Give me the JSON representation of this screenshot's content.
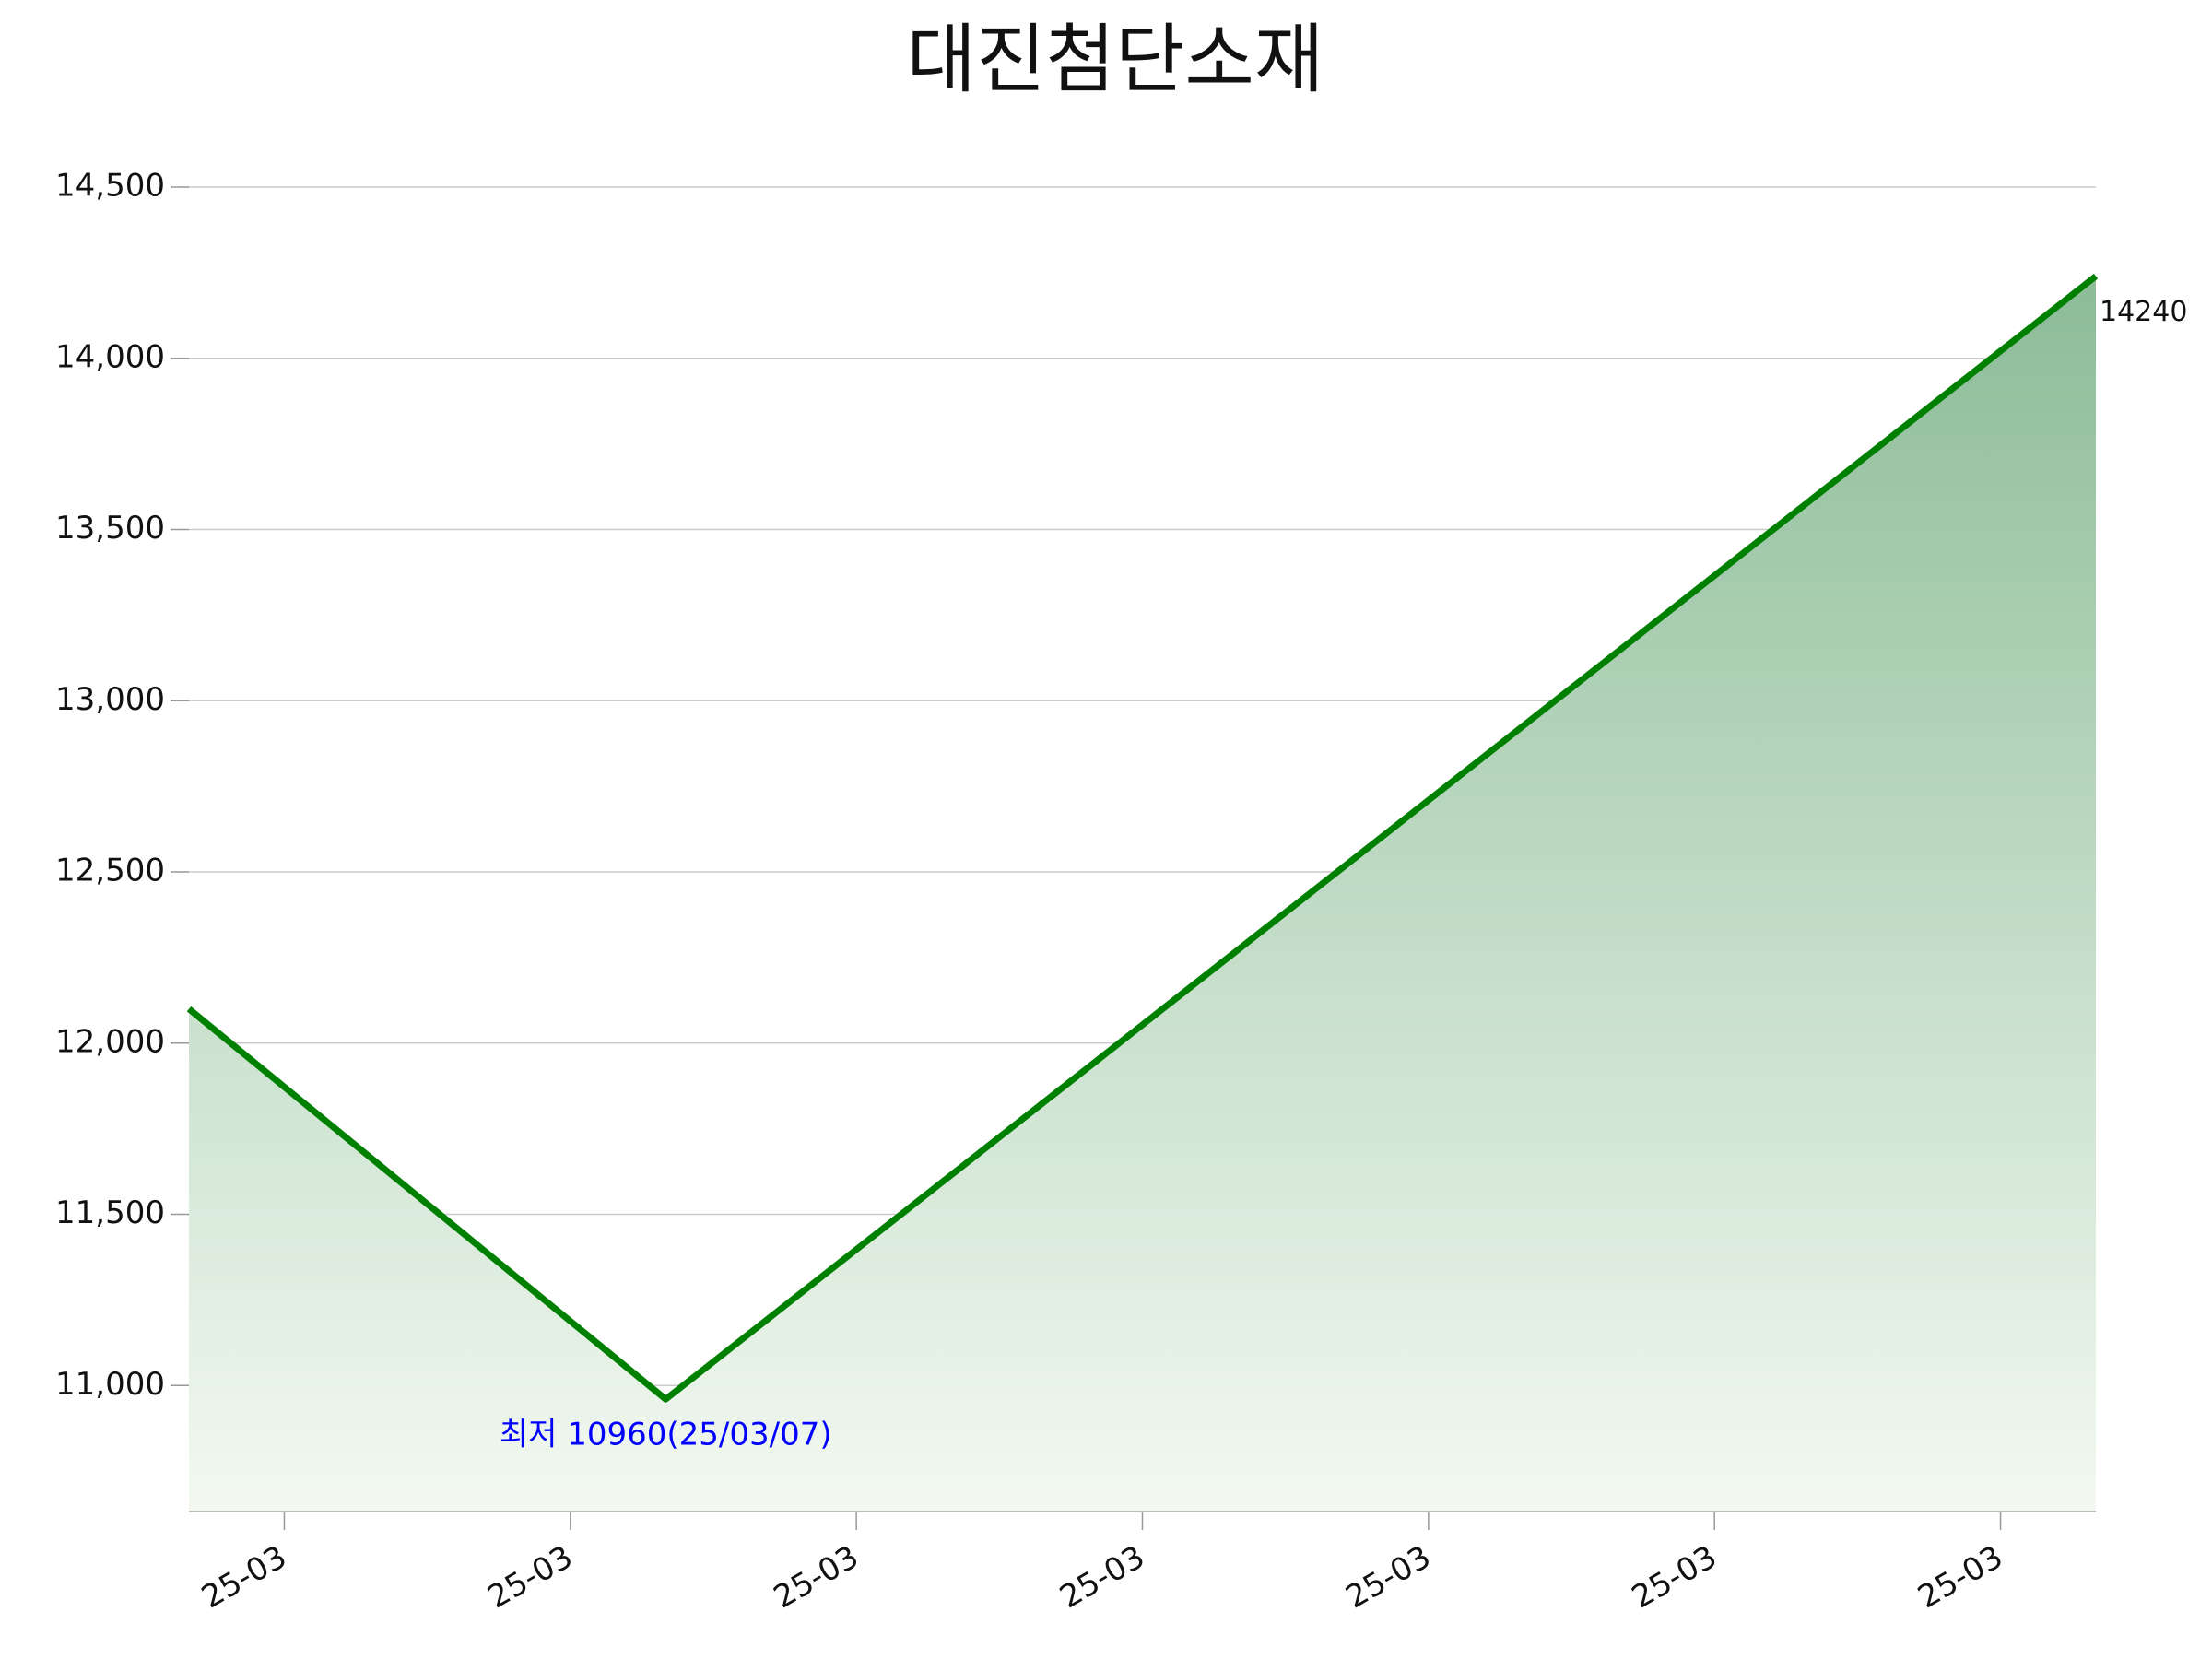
{
  "chart_data": {
    "type": "area-line",
    "title": "대진첨단소재",
    "x": [
      6,
      7,
      10
    ],
    "values": [
      12100,
      10960,
      14240
    ],
    "color": "#008000",
    "fill_gradient": [
      "#8cbc98",
      "#f3f9f1"
    ],
    "xlim": [
      6,
      10
    ],
    "xticks": [
      {
        "value": 6.2,
        "label": "25-03"
      },
      {
        "value": 6.8,
        "label": "25-03"
      },
      {
        "value": 7.4,
        "label": "25-03"
      },
      {
        "value": 8.0,
        "label": "25-03"
      },
      {
        "value": 8.6,
        "label": "25-03"
      },
      {
        "value": 9.2,
        "label": "25-03"
      },
      {
        "value": 9.8,
        "label": "25-03"
      }
    ],
    "ylim": [
      10632,
      14500
    ],
    "yticks": [
      {
        "value": 11000,
        "label": "11,000"
      },
      {
        "value": 11500,
        "label": "11,500"
      },
      {
        "value": 12000,
        "label": "12,000"
      },
      {
        "value": 12500,
        "label": "12,500"
      },
      {
        "value": 13000,
        "label": "13,000"
      },
      {
        "value": 13500,
        "label": "13,500"
      },
      {
        "value": 14000,
        "label": "14,000"
      },
      {
        "value": 14500,
        "label": "14,500"
      }
    ],
    "grid": true,
    "min_annotation": "최저 10960(25/03/07)",
    "min_annotation_color": "#0000ff"
  }
}
